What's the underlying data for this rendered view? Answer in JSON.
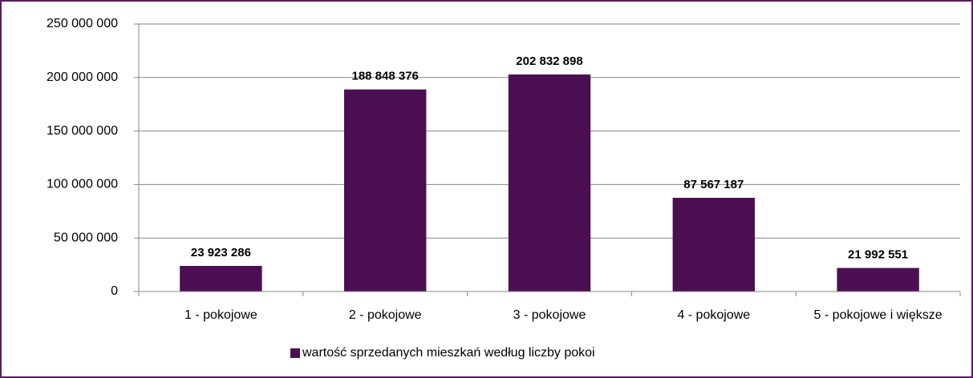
{
  "chart_data": {
    "type": "bar",
    "categories": [
      "1 - pokojowe",
      "2 - pokojowe",
      "3 - pokojowe",
      "4 - pokojowe",
      "5 - pokojowe i większe"
    ],
    "series": [
      {
        "name": "wartość sprzedanych mieszkań według liczby pokoi",
        "color": "#4b0f52",
        "values": [
          23923286,
          188848376,
          202832898,
          87567187,
          21992551
        ],
        "value_labels": [
          "23 923 286",
          "188 848 376",
          "202 832 898",
          "87 567 187",
          "21 992 551"
        ]
      }
    ],
    "ylim": [
      0,
      250000000
    ],
    "yticks": [
      {
        "value": 0,
        "label": "0"
      },
      {
        "value": 50000000,
        "label": "50 000 000"
      },
      {
        "value": 100000000,
        "label": "100 000 000"
      },
      {
        "value": 150000000,
        "label": "150 000 000"
      },
      {
        "value": 200000000,
        "label": "200 000 000"
      },
      {
        "value": 250000000,
        "label": "250 000 000"
      }
    ],
    "grid": true,
    "legend": "bottom"
  }
}
